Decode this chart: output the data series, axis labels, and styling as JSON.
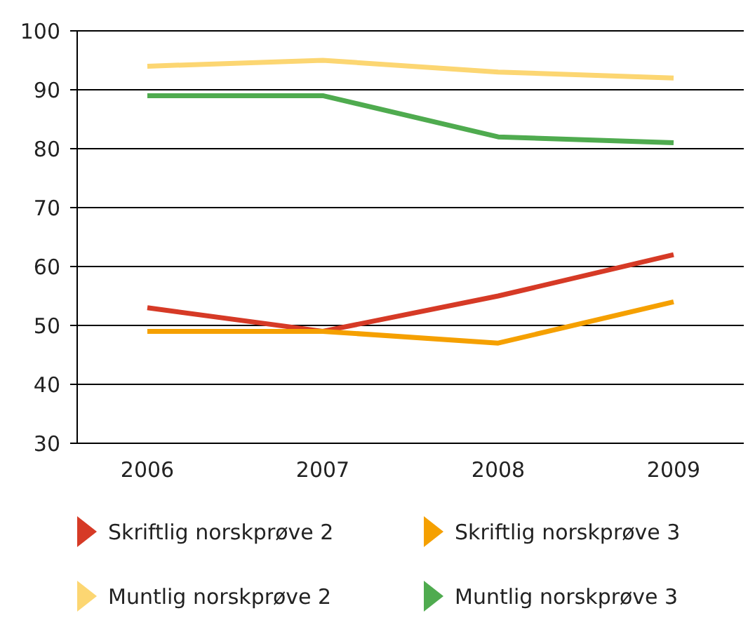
{
  "chart_data": {
    "type": "line",
    "categories": [
      "2006",
      "2007",
      "2008",
      "2009"
    ],
    "series": [
      {
        "name": "Skriftlig norskprøve 2",
        "color": "#d63a26",
        "values": [
          53,
          49,
          55,
          62
        ]
      },
      {
        "name": "Skriftlig norskprøve 3",
        "color": "#f5a000",
        "values": [
          49,
          49,
          47,
          54
        ]
      },
      {
        "name": "Muntlig norskprøve 2",
        "color": "#fcd672",
        "values": [
          94,
          95,
          93,
          92
        ]
      },
      {
        "name": "Muntlig norskprøve 3",
        "color": "#4fab4f",
        "values": [
          89,
          89,
          82,
          81
        ]
      }
    ],
    "ylim": [
      30,
      100
    ],
    "yticks": [
      30,
      40,
      50,
      60,
      70,
      80,
      90,
      100
    ],
    "grid": "y",
    "legend": "bottom",
    "line_style": "solid"
  }
}
